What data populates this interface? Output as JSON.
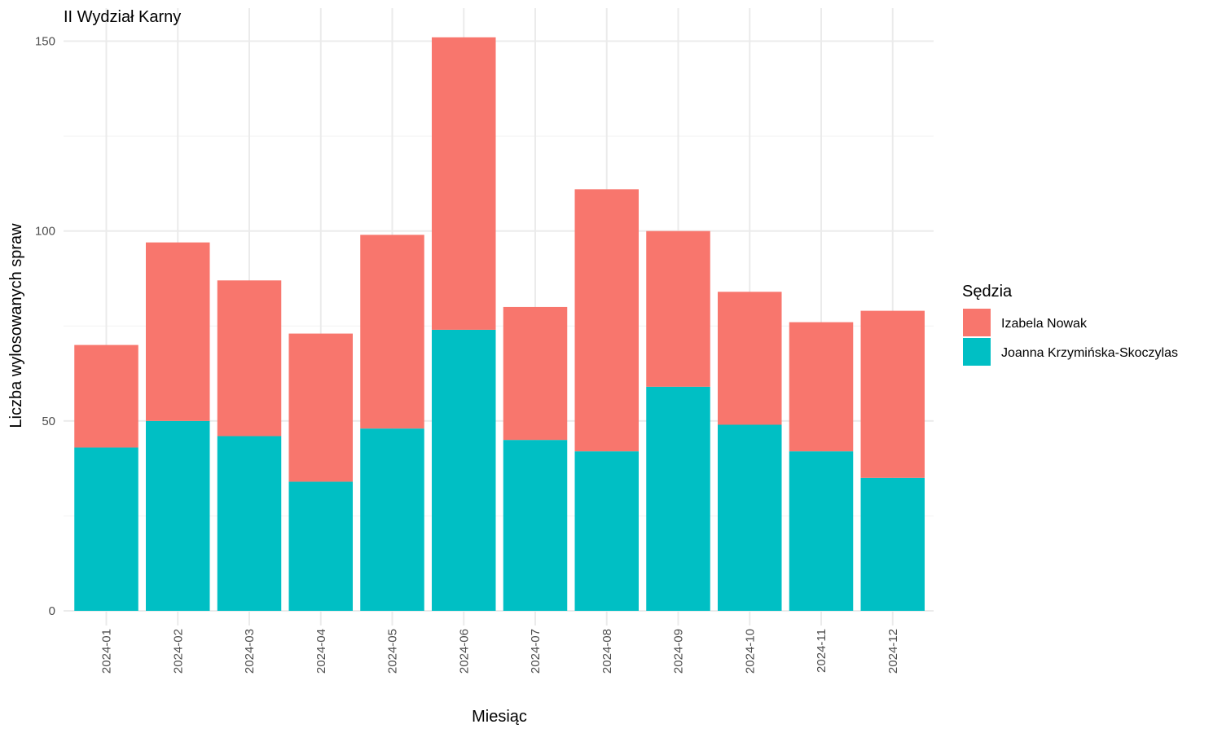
{
  "chart_data": {
    "type": "bar",
    "stacked": true,
    "title": "II Wydział Karny",
    "xlabel": "Miesiąc",
    "ylabel": "Liczba wylosowanych spraw",
    "categories": [
      "2024-01",
      "2024-02",
      "2024-03",
      "2024-04",
      "2024-05",
      "2024-06",
      "2024-07",
      "2024-08",
      "2024-09",
      "2024-10",
      "2024-11",
      "2024-12"
    ],
    "series": [
      {
        "name": "Izabela Nowak",
        "color": "#F8766D",
        "values": [
          27,
          47,
          41,
          39,
          51,
          77,
          35,
          69,
          41,
          35,
          34,
          44
        ]
      },
      {
        "name": "Joanna Krzymińska-Skoczylas",
        "color": "#00BFC4",
        "values": [
          43,
          50,
          46,
          34,
          48,
          74,
          45,
          42,
          59,
          49,
          42,
          35
        ]
      }
    ],
    "stack_order_bottom_to_top": [
      "Joanna Krzymińska-Skoczylas",
      "Izabela Nowak"
    ],
    "ylim": [
      0,
      155
    ],
    "yticks": [
      0,
      50,
      100,
      150
    ],
    "grid": true,
    "legend_title": "Sędzia",
    "legend_position": "right"
  }
}
